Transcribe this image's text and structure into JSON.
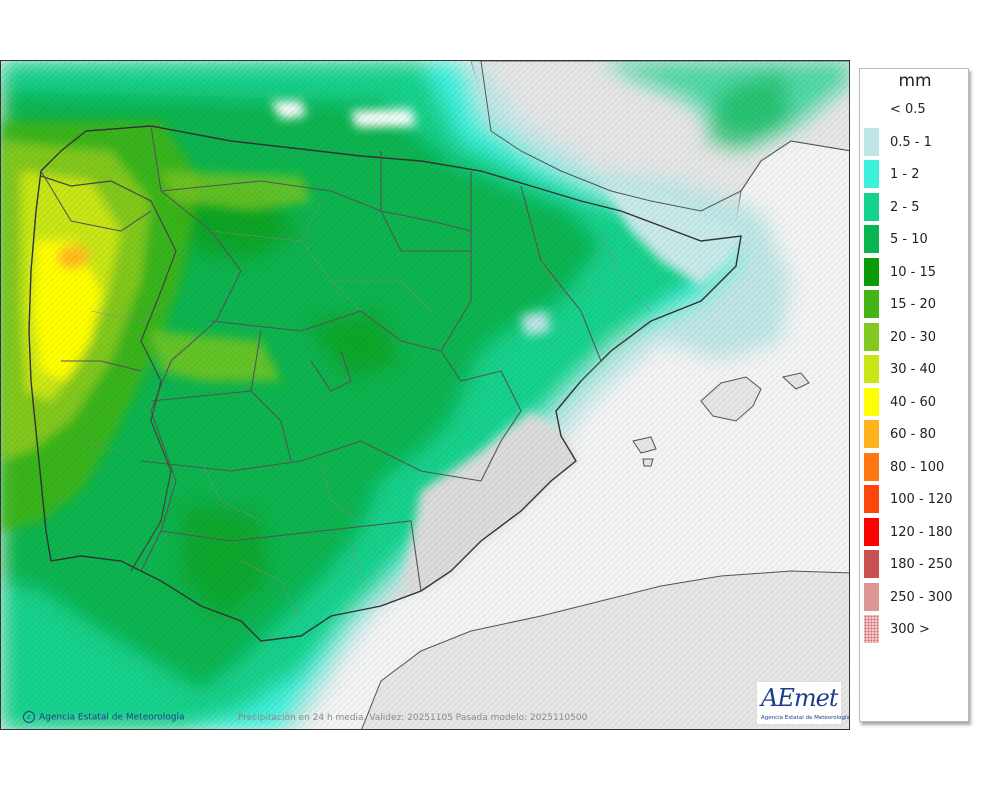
{
  "map": {
    "copyright": "Agencia Estatal de Meteorología",
    "validity": "Precipitación en 24 h media. Validez: 20251105 Pasada modelo: 2025110500",
    "logo_main": "AEmet",
    "logo_sub": "Agencia Estatal de Meteorología"
  },
  "legend": {
    "unit": "mm",
    "items": [
      {
        "label": "< 0.5",
        "color": "#ffffff"
      },
      {
        "label": "0.5 - 1",
        "color": "#bfe6e6"
      },
      {
        "label": "1 - 2",
        "color": "#3cf0dc"
      },
      {
        "label": "2 - 5",
        "color": "#14d28c"
      },
      {
        "label": "5 - 10",
        "color": "#0ab450"
      },
      {
        "label": "10 - 15",
        "color": "#0a9a0a"
      },
      {
        "label": "15 - 20",
        "color": "#46b414"
      },
      {
        "label": "20 - 30",
        "color": "#82c81e"
      },
      {
        "label": "30 - 40",
        "color": "#c8e614"
      },
      {
        "label": "40 - 60",
        "color": "#ffff00"
      },
      {
        "label": "60 - 80",
        "color": "#ffb41e"
      },
      {
        "label": "80 - 100",
        "color": "#ff7814"
      },
      {
        "label": "100 - 120",
        "color": "#ff460a"
      },
      {
        "label": "120 - 180",
        "color": "#ff0000"
      },
      {
        "label": "180 - 250",
        "color": "#c85050"
      },
      {
        "label": "250 - 300",
        "color": "#dc9696"
      },
      {
        "label": "300 >",
        "color": "#f0c8c8"
      }
    ]
  }
}
